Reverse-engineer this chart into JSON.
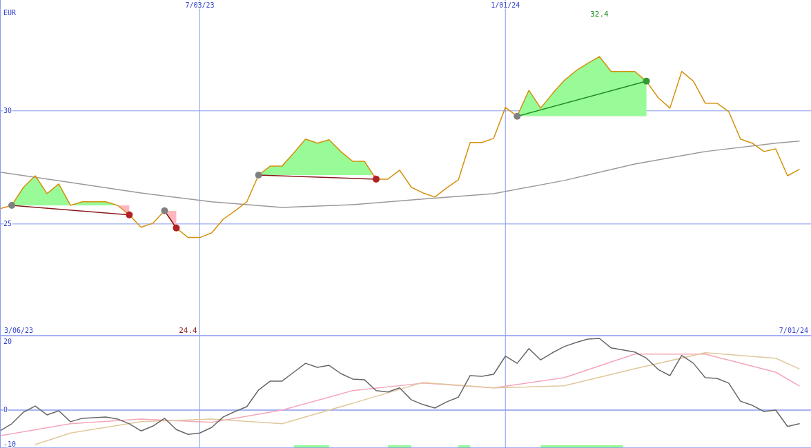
{
  "chart_data": [
    {
      "type": "line",
      "ylabel": "EUR",
      "xlim": [
        "2023-03-06",
        "2024-07-01"
      ],
      "xticks": [
        {
          "value": "2023-07-03",
          "label": "7/03/23"
        },
        {
          "value": "2024-01-01",
          "label": "1/01/24"
        }
      ],
      "ylim": [
        20.06,
        34.9
      ],
      "yticks": [
        25,
        30
      ],
      "grid": true,
      "marker": "none",
      "x": [
        "2023-03-06",
        "2023-03-13",
        "2023-03-20",
        "2023-03-27",
        "2023-04-03",
        "2023-04-10",
        "2023-04-17",
        "2023-04-24",
        "2023-05-01",
        "2023-05-08",
        "2023-05-15",
        "2023-05-22",
        "2023-05-29",
        "2023-06-05",
        "2023-06-12",
        "2023-06-19",
        "2023-06-26",
        "2023-07-03",
        "2023-07-10",
        "2023-07-17",
        "2023-07-24",
        "2023-07-31",
        "2023-08-07",
        "2023-08-14",
        "2023-08-21",
        "2023-08-28",
        "2023-09-04",
        "2023-09-11",
        "2023-09-18",
        "2023-09-25",
        "2023-10-02",
        "2023-10-09",
        "2023-10-16",
        "2023-10-23",
        "2023-10-30",
        "2023-11-06",
        "2023-11-13",
        "2023-11-20",
        "2023-11-27",
        "2023-12-04",
        "2023-12-11",
        "2023-12-18",
        "2023-12-25",
        "2024-01-01",
        "2024-01-08",
        "2024-01-15",
        "2024-01-22",
        "2024-01-29",
        "2024-02-05",
        "2024-02-12",
        "2024-02-19",
        "2024-02-26",
        "2024-03-04",
        "2024-03-11",
        "2024-03-18",
        "2024-03-25",
        "2024-04-01",
        "2024-04-08",
        "2024-04-15",
        "2024-04-22",
        "2024-04-29",
        "2024-05-06",
        "2024-05-13",
        "2024-05-20",
        "2024-05-27",
        "2024-06-03",
        "2024-06-10",
        "2024-06-17",
        "2024-06-24"
      ],
      "series": [
        {
          "color": "#999999",
          "x": [
            "2023-03-06",
            "2023-04-17",
            "2023-05-29",
            "2023-07-10",
            "2023-08-21",
            "2023-10-02",
            "2023-11-13",
            "2023-12-25",
            "2024-02-05",
            "2024-03-18",
            "2024-04-29",
            "2024-06-10",
            "2024-06-24"
          ],
          "values": [
            27.29,
            26.83,
            26.37,
            25.98,
            25.73,
            25.85,
            26.1,
            26.34,
            26.92,
            27.65,
            28.2,
            28.57,
            28.66
          ]
        },
        {
          "color": "#d4900a",
          "values": [
            25.67,
            25.82,
            26.62,
            27.13,
            26.34,
            26.77,
            25.82,
            25.98,
            25.98,
            25.98,
            25.82,
            25.4,
            24.85,
            25.03,
            25.58,
            24.82,
            24.4,
            24.4,
            24.6,
            25.21,
            25.58,
            25.98,
            27.16,
            27.56,
            27.56,
            28.14,
            28.75,
            28.57,
            28.72,
            28.2,
            27.77,
            27.77,
            26.98,
            26.98,
            27.38,
            26.62,
            26.37,
            26.19,
            26.59,
            26.95,
            28.6,
            28.6,
            28.78,
            30.15,
            29.76,
            30.91,
            30.12,
            30.76,
            31.34,
            31.77,
            32.1,
            32.4,
            31.74,
            31.74,
            31.74,
            31.31,
            30.58,
            30.12,
            31.74,
            31.31,
            30.34,
            30.34,
            29.97,
            28.75,
            28.57,
            28.2,
            28.32,
            27.13,
            27.41
          ]
        },
        {
          "color": "#8b1a1a",
          "marker": "circle",
          "colors": [
            "#808080",
            "#b22222"
          ],
          "x": [
            "2023-03-13",
            "2023-05-22"
          ],
          "values": [
            25.82,
            25.4
          ]
        },
        {
          "color": "#8b1a1a",
          "marker": "circle",
          "colors": [
            "#808080",
            "#b22222"
          ],
          "x": [
            "2023-06-12",
            "2023-06-19"
          ],
          "values": [
            25.58,
            24.82
          ]
        },
        {
          "color": "#8b1a1a",
          "marker": "circle",
          "colors": [
            "#808080",
            "#b22222"
          ],
          "x": [
            "2023-08-07",
            "2023-10-16"
          ],
          "values": [
            27.16,
            26.98
          ]
        },
        {
          "color": "#228b22",
          "marker": "circle",
          "colors": [
            "#808080",
            "#339933"
          ],
          "x": [
            "2024-01-08",
            "2024-03-25"
          ],
          "values": [
            29.76,
            31.31
          ]
        }
      ],
      "annotations": [
        "3/06/23",
        "7/01/24",
        "32.4",
        "24.4"
      ]
    },
    {
      "type": "line",
      "xlim": [
        "2023-03-06",
        "2024-07-01"
      ],
      "xticks": [
        {
          "value": "2023-07-03",
          "label": null
        },
        {
          "value": "2024-01-01",
          "label": null
        }
      ],
      "ylim": [
        -11.1,
        21.6
      ],
      "yticks": [
        -10,
        0,
        20
      ],
      "grid": "x",
      "tick_labels": "y",
      "ref_lines": [
        {
          "axis": "y",
          "value": 0
        }
      ],
      "x": [
        "2023-03-06",
        "2023-03-13",
        "2023-03-20",
        "2023-03-27",
        "2023-04-03",
        "2023-04-10",
        "2023-04-17",
        "2023-04-24",
        "2023-05-01",
        "2023-05-08",
        "2023-05-15",
        "2023-05-22",
        "2023-05-29",
        "2023-06-05",
        "2023-06-12",
        "2023-06-19",
        "2023-06-26",
        "2023-07-03",
        "2023-07-10",
        "2023-07-17",
        "2023-07-24",
        "2023-07-31",
        "2023-08-07",
        "2023-08-14",
        "2023-08-21",
        "2023-08-28",
        "2023-09-04",
        "2023-09-11",
        "2023-09-18",
        "2023-09-25",
        "2023-10-02",
        "2023-10-09",
        "2023-10-16",
        "2023-10-23",
        "2023-10-30",
        "2023-11-06",
        "2023-11-13",
        "2023-11-20",
        "2023-11-27",
        "2023-12-04",
        "2023-12-11",
        "2023-12-18",
        "2023-12-25",
        "2024-01-01",
        "2024-01-08",
        "2024-01-15",
        "2024-01-22",
        "2024-01-29",
        "2024-02-05",
        "2024-02-12",
        "2024-02-19",
        "2024-02-26",
        "2024-03-04",
        "2024-03-11",
        "2024-03-18",
        "2024-03-25",
        "2024-04-01",
        "2024-04-08",
        "2024-04-15",
        "2024-04-22",
        "2024-04-29",
        "2024-05-06",
        "2024-05-13",
        "2024-05-20",
        "2024-05-27",
        "2024-06-03",
        "2024-06-10",
        "2024-06-17",
        "2024-06-24"
      ],
      "series": [
        {
          "type": "area",
          "color": "#98fb98",
          "x": [
            "2023-08-28",
            "2023-09-18",
            "2023-09-25",
            "2023-10-23",
            "2023-11-06",
            "2023-11-13",
            "2023-12-04",
            "2023-12-11",
            "2023-12-18",
            "2024-01-22",
            "2024-03-11"
          ],
          "values": [
            -10.3,
            -10.3,
            null,
            -10.3,
            -10.3,
            null,
            -10.3,
            -10.3,
            null,
            -10.3,
            -10.3
          ]
        },
        {
          "color": "#f4a6b8",
          "x": [
            "2023-03-06",
            "2023-04-17",
            "2023-05-29",
            "2023-07-10",
            "2023-08-21",
            "2023-10-02",
            "2023-11-13",
            "2023-12-25",
            "2024-02-05",
            "2024-03-18",
            "2024-04-29",
            "2024-06-10",
            "2024-06-24"
          ],
          "values": [
            -7.5,
            -4.0,
            -2.6,
            -3.6,
            0,
            5.7,
            7.9,
            6.5,
            9.5,
            16.4,
            16.4,
            11.1,
            7.1
          ]
        },
        {
          "color": "#e0c89a",
          "x": [
            "2023-03-27",
            "2023-04-17",
            "2023-05-29",
            "2023-07-10",
            "2023-08-21",
            "2023-10-02",
            "2023-11-13",
            "2023-12-25",
            "2024-02-05",
            "2024-03-18",
            "2024-04-29",
            "2024-06-10",
            "2024-06-24"
          ],
          "values": [
            -10.1,
            -6.7,
            -3.4,
            -2.6,
            -4.0,
            2.0,
            8.1,
            6.5,
            7.1,
            12.1,
            16.8,
            15.2,
            12.1
          ]
        },
        {
          "color": "#666666",
          "values": [
            -6.1,
            -4.0,
            -0.6,
            1.2,
            -1.4,
            -0.2,
            -3.4,
            -2.4,
            -2.2,
            -2.0,
            -2.6,
            -4.0,
            -6.1,
            -4.7,
            -2.4,
            -5.7,
            -7.1,
            -6.7,
            -5.1,
            -2.0,
            -0.4,
            1.0,
            5.9,
            8.5,
            8.5,
            11.1,
            13.7,
            12.5,
            13.1,
            10.7,
            9.1,
            8.9,
            5.7,
            5.3,
            6.5,
            3.0,
            1.6,
            0.6,
            2.4,
            3.8,
            10.1,
            9.9,
            10.5,
            15.8,
            13.7,
            18.0,
            14.7,
            16.8,
            18.6,
            19.8,
            20.8,
            21.0,
            18.2,
            17.6,
            17.0,
            15.2,
            11.9,
            10.1,
            16.0,
            13.7,
            9.5,
            9.3,
            7.9,
            2.6,
            1.4,
            -0.4,
            0,
            -4.8,
            -4.0
          ]
        }
      ]
    }
  ]
}
